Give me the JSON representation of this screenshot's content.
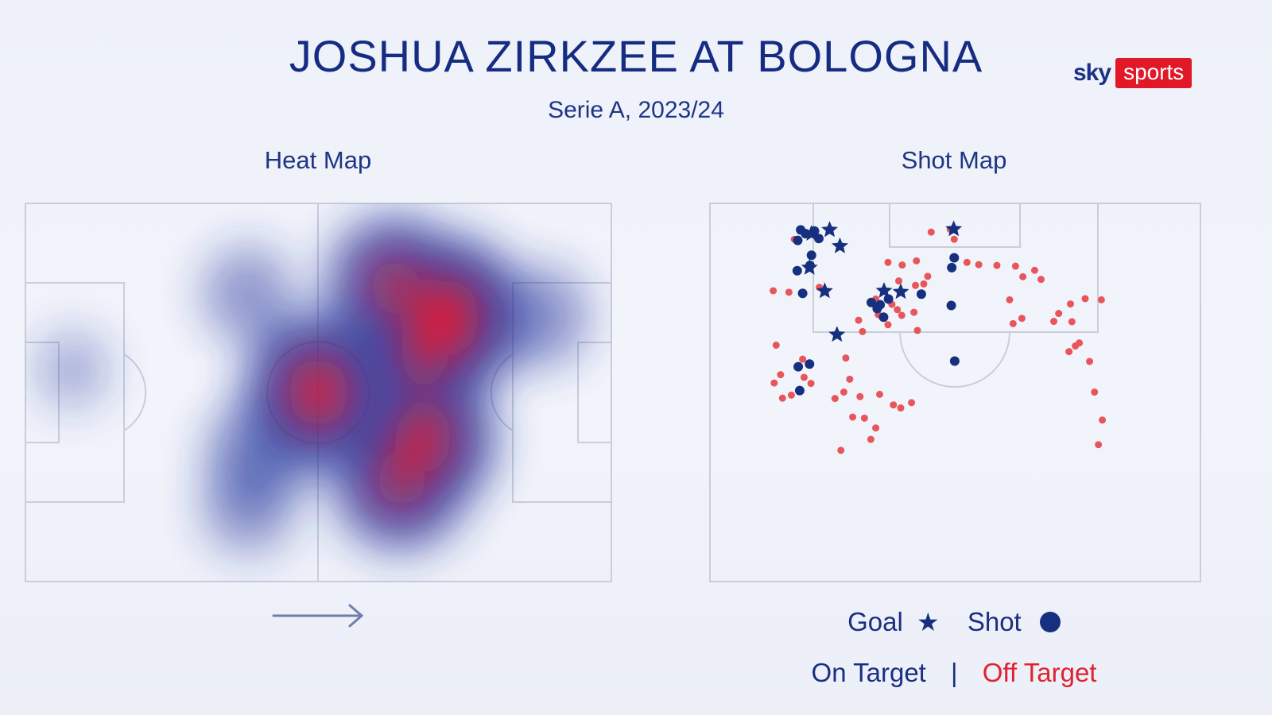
{
  "header": {
    "title": "JOSHUA ZIRKZEE AT BOLOGNA",
    "subtitle": "Serie A, 2023/24"
  },
  "brand": {
    "sky": "sky",
    "sports": "sports",
    "sports_color": "#e01828"
  },
  "colors": {
    "navy": "#16307f",
    "off_target": "#e8555c",
    "pitch_line": "#c9ceda"
  },
  "chart_data": [
    {
      "type": "heatmap",
      "title": "Heat Map",
      "direction": "left-to-right",
      "direction_icon": "arrow-right-icon",
      "hotspots": [
        {
          "x": 72,
          "y": 30,
          "intensity": 1.0
        },
        {
          "x": 68,
          "y": 40,
          "intensity": 0.8
        },
        {
          "x": 63,
          "y": 22,
          "intensity": 0.8
        },
        {
          "x": 68,
          "y": 62,
          "intensity": 0.9
        },
        {
          "x": 64,
          "y": 73,
          "intensity": 0.8
        },
        {
          "x": 50,
          "y": 50,
          "intensity": 0.95
        },
        {
          "x": 40,
          "y": 66,
          "intensity": 0.45
        },
        {
          "x": 38,
          "y": 24,
          "intensity": 0.3
        },
        {
          "x": 88,
          "y": 30,
          "intensity": 0.35
        },
        {
          "x": 38,
          "y": 80,
          "intensity": 0.3
        },
        {
          "x": 8,
          "y": 44,
          "intensity": 0.1
        }
      ]
    },
    {
      "type": "scatter",
      "title": "Shot Map",
      "legend": {
        "goal_label": "Goal",
        "shot_label": "Shot",
        "on_target_label": "On Target",
        "separator": "|",
        "off_target_label": "Off Target"
      },
      "series": [
        {
          "name": "Goal",
          "marker": "star",
          "points": [
            [
              20.7,
              8
            ],
            [
              24.4,
              7
            ],
            [
              26.5,
              11.3
            ],
            [
              49.7,
              6.8
            ],
            [
              20.3,
              17
            ],
            [
              23.4,
              23.2
            ],
            [
              35.5,
              23.1
            ],
            [
              38.9,
              23.4
            ],
            [
              25.9,
              34.7
            ]
          ]
        },
        {
          "name": "On Target",
          "marker": "circle",
          "points": [
            [
              18.5,
              7
            ],
            [
              19.5,
              8
            ],
            [
              17.9,
              9.8
            ],
            [
              21.3,
              7.3
            ],
            [
              22.2,
              9.3
            ],
            [
              20.7,
              13.7
            ],
            [
              20.4,
              16.4
            ],
            [
              17.8,
              17.8
            ],
            [
              49.8,
              14.4
            ],
            [
              49.3,
              17
            ],
            [
              18.9,
              23.8
            ],
            [
              43.1,
              24
            ],
            [
              32.9,
              26.2
            ],
            [
              34.7,
              26.8
            ],
            [
              36.4,
              25.3
            ],
            [
              34.1,
              27.8
            ],
            [
              35.4,
              30.1
            ],
            [
              49.2,
              27
            ],
            [
              49.9,
              41.7
            ],
            [
              18,
              43.2
            ],
            [
              20.3,
              42.5
            ],
            [
              18.3,
              49.5
            ]
          ]
        },
        {
          "name": "Off Target",
          "marker": "circle",
          "points": [
            [
              17.2,
              9.5
            ],
            [
              49,
              6.9
            ],
            [
              49.8,
              9.5
            ],
            [
              45.1,
              7.6
            ],
            [
              36.3,
              15.6
            ],
            [
              39.2,
              16.3
            ],
            [
              42.1,
              15.2
            ],
            [
              52.4,
              15.6
            ],
            [
              54.8,
              16.2
            ],
            [
              58.5,
              16.4
            ],
            [
              62.3,
              16.6
            ],
            [
              66.2,
              17.7
            ],
            [
              63.8,
              19.4
            ],
            [
              67.5,
              20.1
            ],
            [
              44.4,
              19.3
            ],
            [
              43.6,
              21.3
            ],
            [
              41.9,
              21.7
            ],
            [
              38.5,
              20.5
            ],
            [
              22.3,
              22.2
            ],
            [
              12.9,
              23.1
            ],
            [
              16.1,
              23.5
            ],
            [
              33.8,
              25.3
            ],
            [
              37.1,
              26.7
            ],
            [
              38.2,
              28.1
            ],
            [
              39.1,
              29.6
            ],
            [
              41.6,
              28.8
            ],
            [
              34.3,
              29.4
            ],
            [
              30.3,
              30.9
            ],
            [
              31.1,
              33.9
            ],
            [
              36.3,
              32.1
            ],
            [
              42.3,
              33.6
            ],
            [
              61.1,
              25.5
            ],
            [
              61.8,
              31.8
            ],
            [
              63.6,
              30.4
            ],
            [
              73.5,
              26.6
            ],
            [
              76.5,
              25.2
            ],
            [
              79.8,
              25.5
            ],
            [
              71.1,
              29.1
            ],
            [
              70.1,
              31.2
            ],
            [
              73.8,
              31.3
            ],
            [
              75.3,
              36.9
            ],
            [
              74.5,
              37.7
            ],
            [
              73.2,
              39.2
            ],
            [
              77.4,
              41.8
            ],
            [
              78.4,
              49.9
            ],
            [
              80,
              57.3
            ],
            [
              79.2,
              63.8
            ],
            [
              13.5,
              37.5
            ],
            [
              18.9,
              41.2
            ],
            [
              20.2,
              42.6
            ],
            [
              27.7,
              40.9
            ],
            [
              28.5,
              46.5
            ],
            [
              14.4,
              45.3
            ],
            [
              13.1,
              47.5
            ],
            [
              19.2,
              46
            ],
            [
              20.6,
              47.6
            ],
            [
              25.5,
              51.6
            ],
            [
              27.3,
              49.9
            ],
            [
              30.6,
              51.1
            ],
            [
              14.8,
              51.5
            ],
            [
              16.6,
              50.7
            ],
            [
              29.1,
              56.5
            ],
            [
              31.5,
              56.8
            ],
            [
              33.8,
              59.4
            ],
            [
              32.8,
              62.4
            ],
            [
              26.7,
              65.3
            ],
            [
              34.6,
              50.5
            ],
            [
              37.4,
              53.3
            ],
            [
              38.9,
              54.1
            ],
            [
              41.1,
              52.7
            ]
          ]
        }
      ]
    }
  ]
}
